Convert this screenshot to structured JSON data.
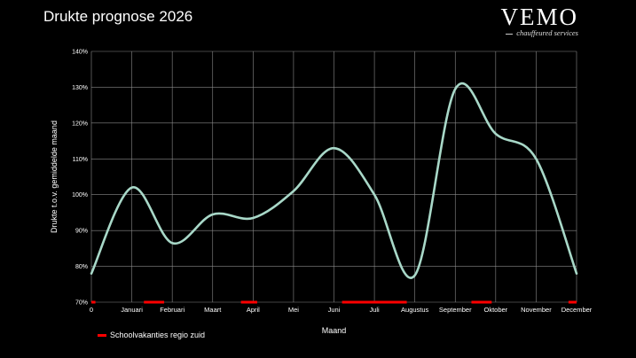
{
  "title": "Drukte prognose 2026",
  "logo": {
    "name": "VEMO",
    "tagline": "chauffeured services"
  },
  "chart_data": {
    "type": "line",
    "xlabel": "Maand",
    "ylabel": "Drukte t.o.v. gemiddelde maand",
    "x_tick_labels": [
      "0",
      "Januari",
      "Februari",
      "Maart",
      "April",
      "Mei",
      "Juni",
      "Juli",
      "Augustus",
      "September",
      "Oktober",
      "November",
      "December"
    ],
    "xlim": [
      0,
      12
    ],
    "ylim": [
      70,
      140
    ],
    "y_ticks": [
      70,
      80,
      90,
      100,
      110,
      120,
      130,
      140
    ],
    "y_tick_labels": [
      "70%",
      "80%",
      "90%",
      "100%",
      "110%",
      "120%",
      "130%",
      "140%"
    ],
    "grid": true,
    "series": [
      {
        "type": "line",
        "color": "#a8d8c8",
        "points": [
          [
            0,
            78
          ],
          [
            1,
            102
          ],
          [
            2,
            86.5
          ],
          [
            3,
            94.5
          ],
          [
            4,
            93.5
          ],
          [
            5,
            101
          ],
          [
            6,
            113
          ],
          [
            7,
            100
          ],
          [
            8,
            77.5
          ],
          [
            9,
            129.5
          ],
          [
            10,
            117
          ],
          [
            11,
            110
          ],
          [
            12,
            78
          ]
        ]
      }
    ],
    "vacation_periods": {
      "name": "Schoolvakanties regio zuid",
      "color": "#ff0000",
      "ranges": [
        [
          0,
          0.1
        ],
        [
          1.3,
          1.8
        ],
        [
          3.7,
          4.1
        ],
        [
          6.2,
          7.8
        ],
        [
          9.4,
          9.9
        ],
        [
          11.8,
          12
        ]
      ]
    },
    "legend": {
      "position": "bottom-left"
    }
  }
}
